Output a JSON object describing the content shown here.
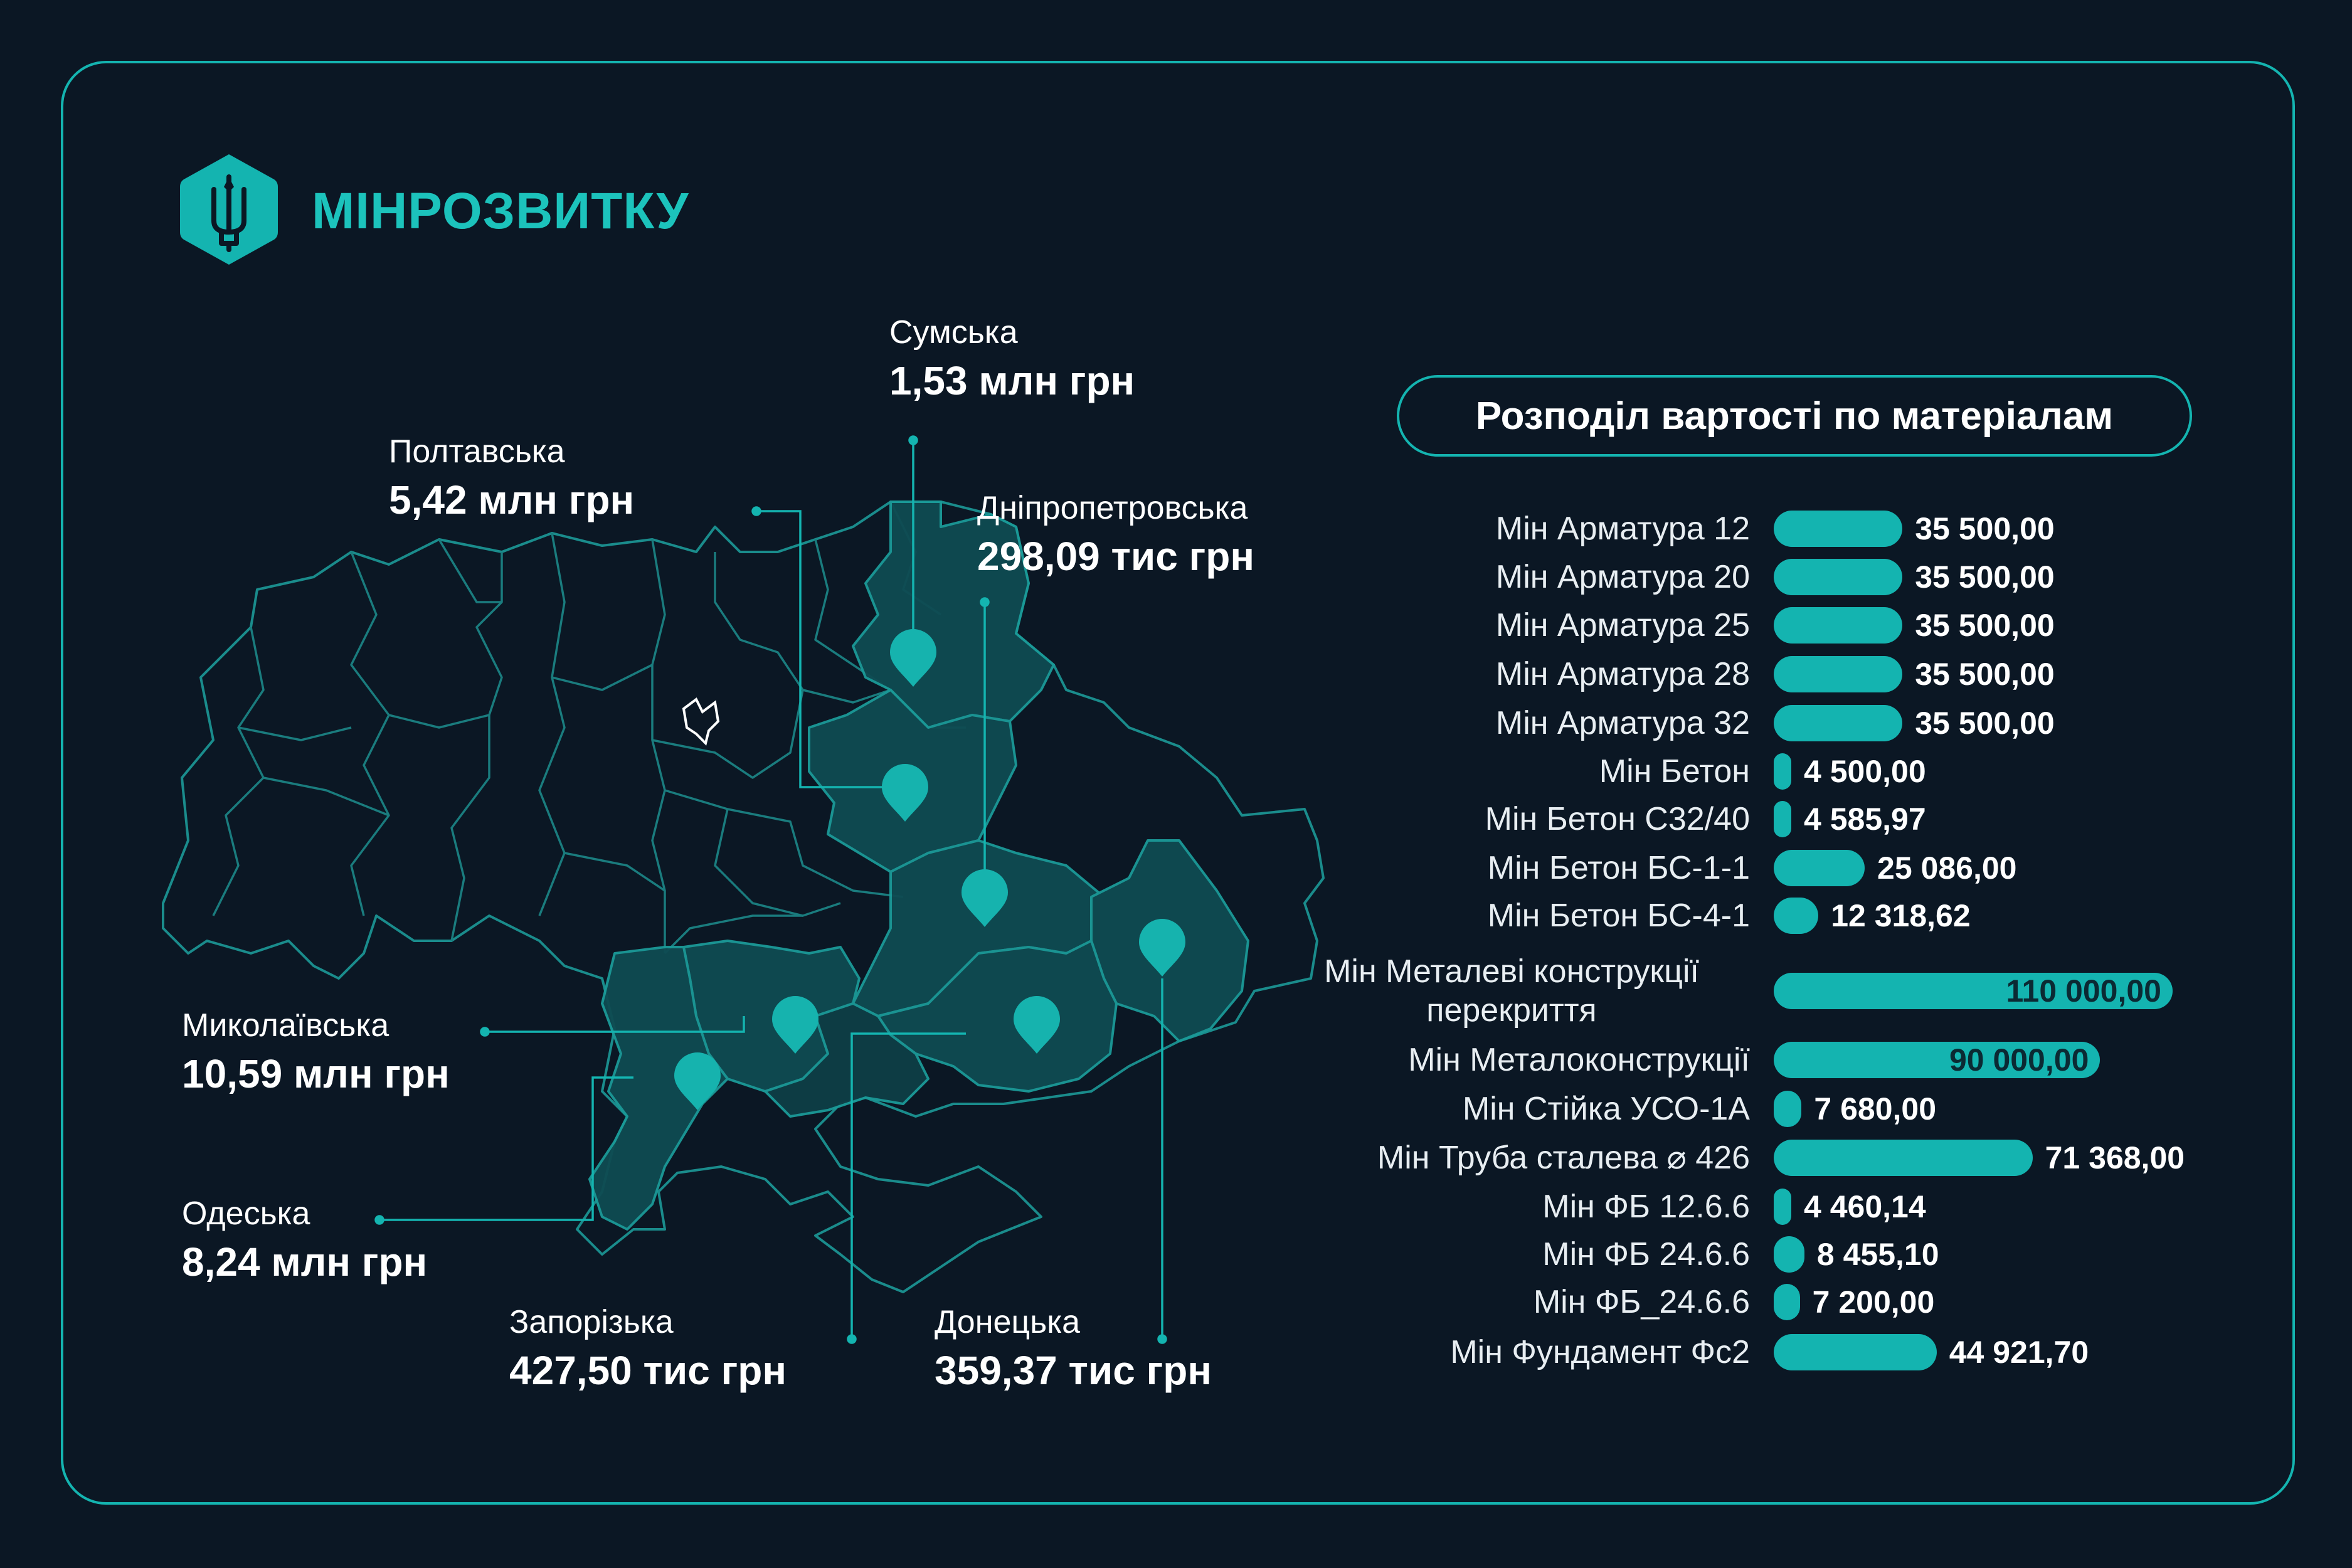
{
  "brand": {
    "name": "МІНРОЗВИТКУ",
    "logo_icon": "trident-icon",
    "accent": "#14b4b0"
  },
  "regions": [
    {
      "id": "sumska",
      "label": "Сумська",
      "value": "1,53 млн грн"
    },
    {
      "id": "poltavska",
      "label": "Полтавська",
      "value": "5,42 млн грн"
    },
    {
      "id": "dnipro",
      "label": "Дніпропетровська",
      "value": "298,09 тис грн"
    },
    {
      "id": "mykolaiv",
      "label": "Миколаївська",
      "value": "10,59 млн грн"
    },
    {
      "id": "odesa",
      "label": "Одеська",
      "value": "8,24 млн грн"
    },
    {
      "id": "zaporizhzhia",
      "label": "Запорізька",
      "value": "427,50 тис грн"
    },
    {
      "id": "donetsk",
      "label": "Донецька",
      "value": "359,37 тис грн"
    }
  ],
  "chart_data": {
    "type": "bar",
    "orientation": "horizontal",
    "title": "Розподіл вартості по матеріалам",
    "categories": [
      "Мін Арматура 12",
      "Мін Арматура 20",
      "Мін Арматура 25",
      "Мін Арматура 28",
      "Мін Арматура 32",
      "Мін Бетон",
      "Мін Бетон С32/40",
      "Мін Бетон БС-1-1",
      "Мін Бетон БС-4-1",
      "Мін Металеві конструкції перекриття",
      "Мін Металоконструкції",
      "Мін Стійка  УСО-1А",
      "Мін Труба сталева ⌀ 426",
      "Мін ФБ 12.6.6",
      "Мін ФБ 24.6.6",
      "Мін ФБ_24.6.6",
      "Мін Фундамент Фс2"
    ],
    "values": [
      35500,
      35500,
      35500,
      35500,
      35500,
      4500,
      4585.97,
      25086,
      12318.62,
      110000,
      90000,
      7680,
      71368,
      4460.14,
      8455.1,
      7200,
      44921.7
    ],
    "value_labels": [
      "35 500,00",
      "35 500,00",
      "35 500,00",
      "35 500,00",
      "35 500,00",
      "4 500,00",
      "4 585,97",
      "25 086,00",
      "12 318,62",
      "110 000,00",
      "90 000,00",
      "7 680,00",
      "71 368,00",
      "4 460,14",
      "8 455,10",
      "7 200,00",
      "44 921,70"
    ],
    "bar_color": "#14b4b0"
  }
}
